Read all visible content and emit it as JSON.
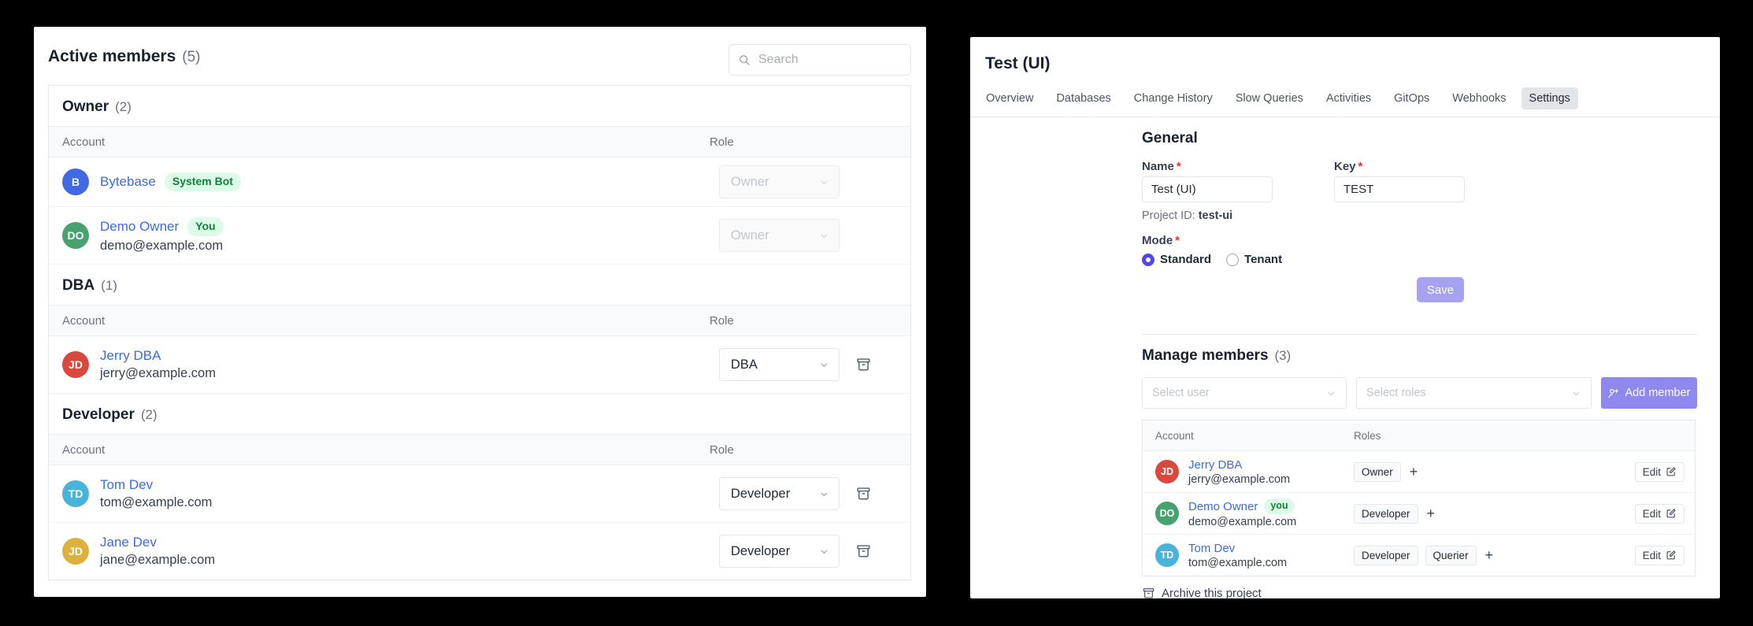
{
  "colors": {
    "accent_indigo": "#4f46e5",
    "save_button": "#a6a2f0",
    "add_member_button": "#8f88ee",
    "link_blue": "#3b6be4",
    "badge_green_bg": "#dcfce7",
    "badge_green_text": "#15803d",
    "active_tab_bg": "#e4e5e8",
    "required_red": "#e02f2f"
  },
  "icons": {
    "search": "magnifier-glass",
    "select_chevron": "chevron-down",
    "remove_member": "trash-can",
    "add_member": "person-plus",
    "edit": "pencil-square",
    "archive": "archive-box"
  },
  "left_panel": {
    "title": "Active members",
    "title_count": "(5)",
    "search_placeholder": "Search",
    "columns": {
      "account": "Account",
      "role": "Role"
    },
    "groups": [
      {
        "name": "Owner",
        "count": "(2)",
        "members": [
          {
            "initials": "B",
            "avatar_color": "#4169e1",
            "name": "Bytebase",
            "badge": "System Bot",
            "email": "",
            "role": "Owner",
            "role_disabled": true,
            "removable": false
          },
          {
            "initials": "DO",
            "avatar_color": "#47a26f",
            "name": "Demo Owner",
            "badge": "You",
            "email": "demo@example.com",
            "role": "Owner",
            "role_disabled": true,
            "removable": false
          }
        ]
      },
      {
        "name": "DBA",
        "count": "(1)",
        "members": [
          {
            "initials": "JD",
            "avatar_color": "#d9473d",
            "name": "Jerry DBA",
            "badge": "",
            "email": "jerry@example.com",
            "role": "DBA",
            "role_disabled": false,
            "removable": true
          }
        ]
      },
      {
        "name": "Developer",
        "count": "(2)",
        "members": [
          {
            "initials": "TD",
            "avatar_color": "#49b3d9",
            "name": "Tom Dev",
            "badge": "",
            "email": "tom@example.com",
            "role": "Developer",
            "role_disabled": false,
            "removable": true
          },
          {
            "initials": "JD",
            "avatar_color": "#deb13d",
            "name": "Jane Dev",
            "badge": "",
            "email": "jane@example.com",
            "role": "Developer",
            "role_disabled": false,
            "removable": true
          }
        ]
      }
    ]
  },
  "right_panel": {
    "title": "Test (UI)",
    "tabs": [
      "Overview",
      "Databases",
      "Change History",
      "Slow Queries",
      "Activities",
      "GitOps",
      "Webhooks",
      "Settings"
    ],
    "active_tab": "Settings",
    "general": {
      "heading": "General",
      "name_label": "Name",
      "key_label": "Key",
      "required_mark": "*",
      "name_value": "Test (UI)",
      "key_value": "TEST",
      "project_id_label": "Project ID:",
      "project_id_value": "test-ui",
      "mode_label": "Mode",
      "modes": [
        "Standard",
        "Tenant"
      ],
      "selected_mode": "Standard",
      "save_label": "Save"
    },
    "members": {
      "heading": "Manage members",
      "count": "(3)",
      "select_user_placeholder": "Select user",
      "select_roles_placeholder": "Select roles",
      "add_member_label": "Add member",
      "columns": {
        "account": "Account",
        "roles": "Roles"
      },
      "edit_label": "Edit",
      "rows": [
        {
          "initials": "JD",
          "avatar_color": "#d9473d",
          "name": "Jerry DBA",
          "badge": "",
          "email": "jerry@example.com",
          "roles": [
            "Owner"
          ]
        },
        {
          "initials": "DO",
          "avatar_color": "#47a26f",
          "name": "Demo Owner",
          "badge": "you",
          "email": "demo@example.com",
          "roles": [
            "Developer"
          ]
        },
        {
          "initials": "TD",
          "avatar_color": "#49b3d9",
          "name": "Tom Dev",
          "badge": "",
          "email": "tom@example.com",
          "roles": [
            "Developer",
            "Querier"
          ]
        }
      ]
    },
    "archive_label": "Archive this project"
  }
}
